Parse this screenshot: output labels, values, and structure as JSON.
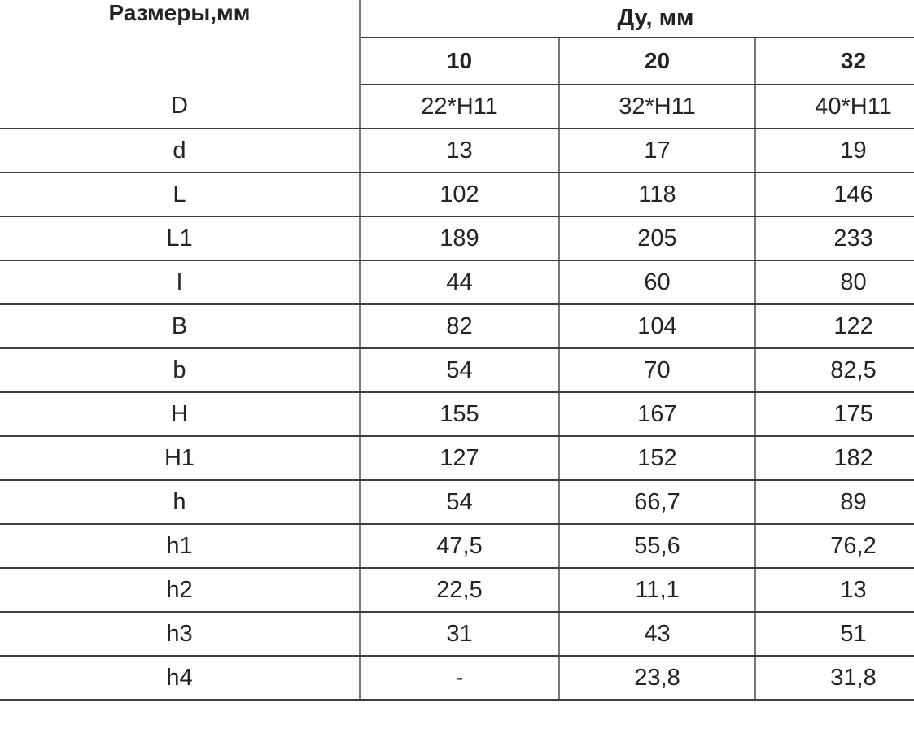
{
  "colors": {
    "background": "#ffffff",
    "horizontal_line": "#3d3d3d",
    "vertical_line": "#787878",
    "text": "#242424"
  },
  "chart_data": {
    "type": "table",
    "corner_header": "Размеры,мм",
    "column_group": "Ду, мм",
    "columns": [
      "10",
      "20",
      "32"
    ],
    "rows": [
      {
        "label": "D",
        "values": [
          "22*H11",
          "32*H11",
          "40*H11"
        ]
      },
      {
        "label": "d",
        "values": [
          "13",
          "17",
          "19"
        ]
      },
      {
        "label": "L",
        "values": [
          "102",
          "118",
          "146"
        ]
      },
      {
        "label": "L1",
        "values": [
          "189",
          "205",
          "233"
        ]
      },
      {
        "label": "l",
        "values": [
          "44",
          "60",
          "80"
        ]
      },
      {
        "label": "B",
        "values": [
          "82",
          "104",
          "122"
        ]
      },
      {
        "label": "b",
        "values": [
          "54",
          "70",
          "82,5"
        ]
      },
      {
        "label": "H",
        "values": [
          "155",
          "167",
          "175"
        ]
      },
      {
        "label": "H1",
        "values": [
          "127",
          "152",
          "182"
        ]
      },
      {
        "label": "h",
        "values": [
          "54",
          "66,7",
          "89"
        ]
      },
      {
        "label": "h1",
        "values": [
          "47,5",
          "55,6",
          "76,2"
        ]
      },
      {
        "label": "h2",
        "values": [
          "22,5",
          "11,1",
          "13"
        ]
      },
      {
        "label": "h3",
        "values": [
          "31",
          "43",
          "51"
        ]
      },
      {
        "label": "h4",
        "values": [
          "-",
          "23,8",
          "31,8"
        ]
      }
    ]
  }
}
